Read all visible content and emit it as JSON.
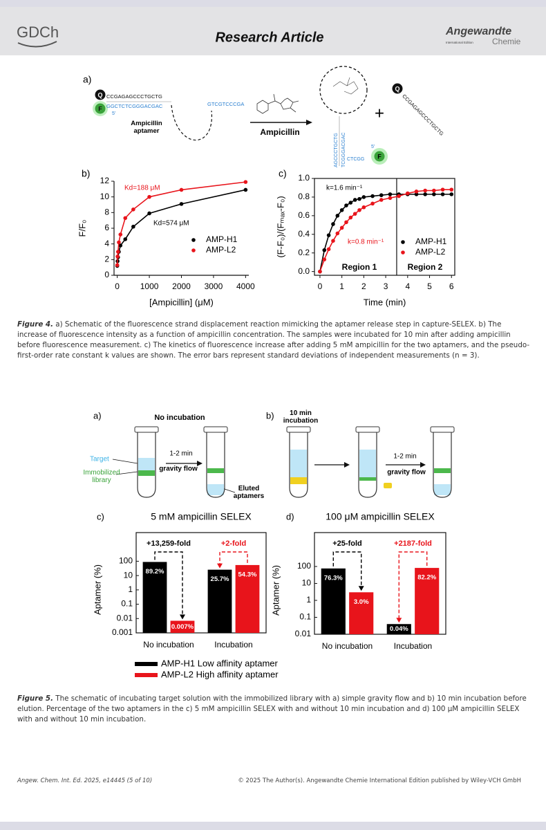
{
  "header": {
    "logo": "GDCh",
    "title": "Research Article",
    "journal": "Angewandte",
    "journal_edition": "International Edition",
    "journal_chemie": "Chemie"
  },
  "figure4": {
    "panel_a": {
      "label": "a)",
      "quencher": "Q",
      "fluorophore": "F",
      "strand_top": "CCGAGAGCCCTGCTG",
      "strand_bottom": "GGCTCTCGGGACGAC",
      "five_prime": "5'",
      "loop_sequence": "GTCGTCCCGA",
      "aptamer_label": "Ampicillin aptamer",
      "arrow_label": "Ampicillin",
      "hairpin_left": "AGCCCTGCTG",
      "hairpin_right": "TCGGGACGAC",
      "hairpin_tail": "CTCGG",
      "hairpin_five_prime": "5'",
      "hairpin_fluorophore": "F",
      "plus": "+",
      "released_quencher": "Q",
      "released_strand": "CCGAGAGCCCTGCTG"
    },
    "panel_b": {
      "label": "b)",
      "chart_data": {
        "type": "scatter",
        "xlabel": "[Ampicillin] (μM)",
        "ylabel": "F/F₀",
        "frame": "axes",
        "fit": true,
        "x": [
          0,
          10,
          25,
          50,
          100,
          250,
          500,
          1000,
          2000,
          4000
        ],
        "series": [
          {
            "name": "AMP-H1",
            "color": "#000000",
            "values": [
              1.2,
              1.8,
              2.3,
              3.0,
              3.8,
              4.6,
              6.2,
              7.9,
              9.1,
              10.9
            ]
          },
          {
            "name": "AMP-L2",
            "color": "#e8141b",
            "values": [
              1.3,
              2.4,
              3.0,
              4.2,
              5.2,
              7.3,
              8.4,
              10.0,
              10.9,
              11.9
            ]
          }
        ],
        "xlim": [
          -100,
          4100
        ],
        "xticks": [
          0,
          1000,
          2000,
          3000,
          4000
        ],
        "ylim": [
          0,
          12
        ],
        "yticks": [
          0,
          2,
          4,
          6,
          8,
          10,
          12
        ],
        "annotations": [
          "Kd=188 μM",
          "Kd=574 μM"
        ]
      }
    },
    "panel_c": {
      "label": "c)",
      "chart_data": {
        "type": "scatter",
        "xlabel": "Time (min)",
        "ylabel": "(F-F₀)/(Fₘₐₓ-F₀)",
        "frame": "box",
        "fit": true,
        "x": [
          0,
          0.2,
          0.4,
          0.6,
          0.8,
          1,
          1.2,
          1.4,
          1.6,
          1.8,
          2,
          2.4,
          2.8,
          3.2,
          3.6,
          4,
          4.4,
          4.8,
          5.2,
          5.6,
          6
        ],
        "series": [
          {
            "name": "AMP-H1",
            "color": "#000000",
            "values": [
              0,
              0.23,
              0.39,
              0.51,
              0.6,
              0.66,
              0.71,
              0.74,
              0.77,
              0.78,
              0.8,
              0.81,
              0.82,
              0.83,
              0.83,
              0.83,
              0.83,
              0.83,
              0.83,
              0.83,
              0.83
            ]
          },
          {
            "name": "AMP-L2",
            "color": "#e8141b",
            "values": [
              0,
              0.13,
              0.24,
              0.33,
              0.41,
              0.47,
              0.53,
              0.58,
              0.62,
              0.66,
              0.69,
              0.73,
              0.77,
              0.79,
              0.81,
              0.84,
              0.86,
              0.87,
              0.87,
              0.88,
              0.88
            ]
          }
        ],
        "xlim": [
          -0.25,
          6.15
        ],
        "xticks": [
          0,
          1,
          2,
          3,
          4,
          5,
          6
        ],
        "ylim": [
          -0.04,
          1.0
        ],
        "yticks": [
          {
            "value": 0,
            "label": "0.0"
          },
          0.2,
          0.4,
          0.6,
          0.8,
          {
            "value": 1,
            "label": "1.0"
          }
        ],
        "vline": 3.5,
        "regions": [
          "Region 1",
          "Region 2"
        ],
        "annotations": [
          "k=1.6 min⁻¹",
          "k=0.8 min⁻¹"
        ]
      }
    },
    "caption": {
      "label": "Figure 4.",
      "text": "a) Schematic of the fluorescence strand displacement reaction mimicking the aptamer release step in capture-SELEX. b) The increase of fluorescence intensity as a function of ampicillin concentration. The samples were incubated for 10 min after adding ampicillin before fluorescence measurement. c) The kinetics of fluorescence increase after adding 5 mM ampicillin for the two aptamers, and the pseudo-first-order rate constant k values are shown. The error bars represent standard deviations of independent measurements (n = 3)."
    }
  },
  "figure5": {
    "panel_a": {
      "label": "a)",
      "title": "No incubation",
      "time": "1-2 min",
      "method": "gravity flow",
      "target": "Target",
      "library": "Immobilized library",
      "eluted": "Eluted aptamers"
    },
    "panel_b": {
      "label": "b)",
      "title": "10 min incubation",
      "time": "1-2 min",
      "method": "gravity flow"
    },
    "panel_c": {
      "label": "c)",
      "chart_data": {
        "type": "bar",
        "title": "5 mM ampicillin SELEX",
        "ylabel": "Aptamer (%)",
        "log_y": true,
        "categories": [
          "No incubation",
          "Incubation"
        ],
        "series": [
          {
            "color": "#000000",
            "values": [
              89.2,
              25.7
            ],
            "value_labels": [
              "89.2%",
              "25.7%"
            ]
          },
          {
            "color": "#e8141b",
            "values": [
              0.007,
              54.3
            ],
            "value_labels": [
              "0.007%",
              "54.3%"
            ]
          }
        ],
        "ylim": [
          0.001,
          10000
        ],
        "yticks": [
          0.001,
          0.01,
          0.1,
          1,
          10,
          100
        ],
        "annotations": [
          "+13,259-fold",
          "+2-fold"
        ]
      }
    },
    "panel_d": {
      "label": "d)",
      "chart_data": {
        "type": "bar",
        "title": "100 μM ampicillin SELEX",
        "ylabel": "Aptamer (%)",
        "log_y": true,
        "categories": [
          "No incubation",
          "Incubation"
        ],
        "series": [
          {
            "color": "#000000",
            "values": [
              76.3,
              0.04
            ],
            "value_labels": [
              "76.3%",
              "0.04%"
            ]
          },
          {
            "color": "#e8141b",
            "values": [
              3,
              82.2
            ],
            "value_labels": [
              "3.0%",
              "82.2%"
            ]
          }
        ],
        "ylim": [
          0.01,
          10000
        ],
        "yticks": [
          0.01,
          0.1,
          1,
          10,
          100
        ],
        "annotations": [
          "+25-fold",
          "+2187-fold"
        ]
      }
    },
    "legend": [
      {
        "name": "AMP-H1 Low affinity aptamer",
        "color": "#000000"
      },
      {
        "name": "AMP-L2 High affinity aptamer",
        "color": "#e8141b"
      }
    ],
    "caption": {
      "label": "Figure 5.",
      "text": "The schematic of incubating target solution with the immobilized library with a) simple gravity flow and b) 10 min incubation before elution. Percentage of the two aptamers in the c) 5 mM ampicillin SELEX with and without 10 min incubation and d) 100 μM ampicillin SELEX with and without 10 min incubation."
    }
  },
  "footer": {
    "citation": "Angew. Chem. Int. Ed. 2025, e14445 (5 of 10)",
    "copyright": "© 2025 The Author(s). Angewandte Chemie International Edition published by Wiley-VCH GmbH"
  }
}
